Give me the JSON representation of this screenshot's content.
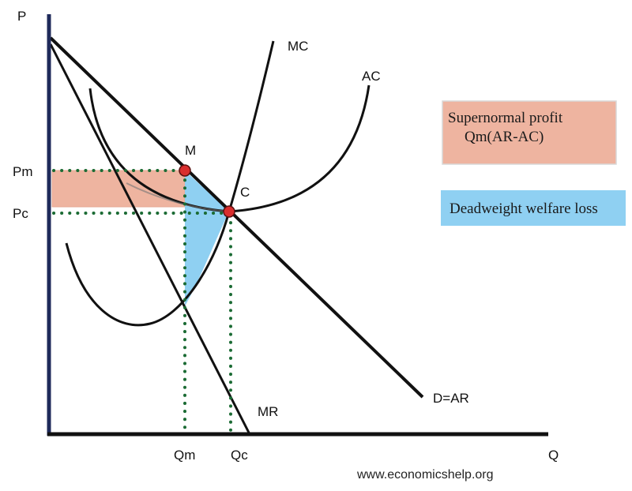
{
  "axes": {
    "y_label": "P",
    "x_label": "Q"
  },
  "curves": {
    "mc_label": "MC",
    "ac_label": "AC",
    "demand_label": "D=AR",
    "mr_label": "MR"
  },
  "points": {
    "monopoly_label": "M",
    "competitive_label": "C"
  },
  "price_ticks": {
    "pm": "Pm",
    "pc": "Pc"
  },
  "quantity_ticks": {
    "qm": "Qm",
    "qc": "Qc"
  },
  "legend": {
    "profit_line1": "Supernormal profit",
    "profit_line2": "Qm(AR-AC)",
    "deadweight": "Deadweight welfare loss"
  },
  "credit": "www.economicshelp.org",
  "colors": {
    "profit_fill": "#eeb4a0",
    "deadweight_fill": "#8fd0f2",
    "point_fill": "#d92e2e",
    "guide_dots": "#1b6b34",
    "curves": "#111111",
    "y_axis": "#1f2a5a"
  }
}
